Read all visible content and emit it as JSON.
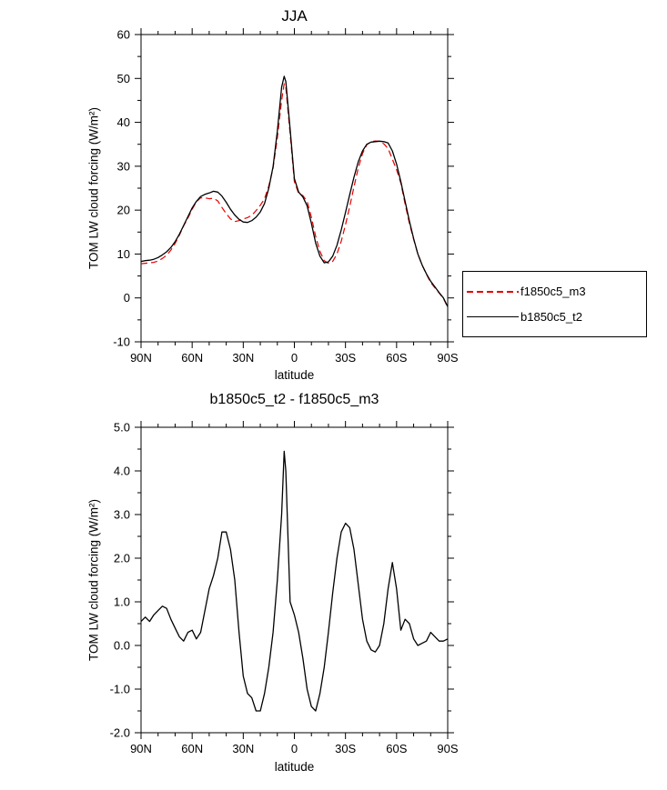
{
  "figure": {
    "background": "#ffffff"
  },
  "chart_data": [
    {
      "id": "top",
      "type": "line",
      "title": "JJA",
      "xlabel": "latitude",
      "ylabel": "TOM LW cloud forcing (W/m²)",
      "xlim": [
        90,
        -90
      ],
      "ylim": [
        -10,
        60
      ],
      "grid": false,
      "x_ticks": {
        "values": [
          90,
          60,
          30,
          0,
          -30,
          -60,
          -90
        ],
        "labels": [
          "90N",
          "60N",
          "30N",
          "0",
          "30S",
          "60S",
          "90S"
        ],
        "minor_step": 10
      },
      "y_ticks": {
        "values": [
          -10,
          0,
          10,
          20,
          30,
          40,
          50,
          60
        ],
        "labels": [
          "-10",
          "0",
          "10",
          "20",
          "30",
          "40",
          "50",
          "60"
        ],
        "minor_step": 5
      },
      "legend": {
        "position": "outside-right"
      },
      "x": [
        90,
        87.5,
        85,
        82.5,
        80,
        77.5,
        75,
        72.5,
        70,
        67.5,
        65,
        62.5,
        60,
        57.5,
        55,
        52.5,
        50,
        47.5,
        45,
        42.5,
        40,
        37.5,
        35,
        32.5,
        30,
        27.5,
        25,
        22.5,
        20,
        17.5,
        15,
        12.5,
        10,
        7.5,
        6,
        5,
        2.5,
        0,
        -2.5,
        -5,
        -7.5,
        -10,
        -12.5,
        -15,
        -17.5,
        -20,
        -22.5,
        -25,
        -27.5,
        -30,
        -32.5,
        -35,
        -37.5,
        -40,
        -42.5,
        -45,
        -47.5,
        -50,
        -52.5,
        -55,
        -57.5,
        -60,
        -62.5,
        -65,
        -67.5,
        -70,
        -72.5,
        -75,
        -77.5,
        -80,
        -82.5,
        -85,
        -87.5,
        -90
      ],
      "series": [
        {
          "name": "f1850c5_m3",
          "color": "#e60000",
          "style": "dashed",
          "values": [
            7.8,
            7.9,
            8.0,
            8.1,
            8.4,
            9.0,
            9.7,
            10.9,
            12.4,
            14.3,
            16.4,
            18.2,
            20.2,
            21.9,
            22.8,
            22.8,
            22.6,
            22.7,
            22.1,
            20.6,
            19.2,
            18.0,
            17.4,
            17.6,
            18.0,
            18.3,
            18.8,
            19.9,
            21.1,
            22.6,
            25.5,
            29.6,
            36.5,
            45.0,
            48.8,
            48.0,
            37.5,
            26.5,
            23.8,
            23.3,
            22.0,
            18.4,
            14.0,
            10.6,
            8.5,
            7.9,
            8.3,
            10.0,
            12.9,
            16.7,
            20.8,
            25.3,
            29.6,
            32.9,
            34.9,
            35.6,
            35.75,
            35.7,
            35.1,
            34.0,
            31.6,
            29.2,
            26.15,
            21.4,
            17.0,
            13.35,
            10.0,
            7.45,
            5.4,
            3.5,
            2.3,
            1.1,
            -0.1,
            -2.15
          ]
        },
        {
          "name": "b1850c5_t2",
          "color": "#000000",
          "style": "solid",
          "values": [
            8.3,
            8.5,
            8.6,
            8.8,
            9.2,
            9.8,
            10.5,
            11.5,
            12.8,
            14.5,
            16.5,
            18.5,
            20.5,
            22.0,
            23.1,
            23.6,
            23.9,
            24.3,
            24.1,
            23.2,
            21.8,
            20.2,
            18.9,
            17.9,
            17.3,
            17.2,
            17.6,
            18.4,
            19.6,
            21.5,
            25.0,
            29.9,
            38.0,
            48.0,
            50.5,
            49.3,
            38.5,
            27.2,
            24.1,
            23.0,
            21.0,
            17.0,
            12.5,
            9.5,
            8.0,
            8.2,
            9.5,
            12.0,
            15.5,
            19.5,
            23.5,
            27.5,
            31.0,
            33.5,
            35.0,
            35.5,
            35.6,
            35.7,
            35.6,
            35.3,
            33.5,
            30.5,
            26.5,
            22.0,
            17.5,
            13.5,
            10.0,
            7.5,
            5.5,
            3.8,
            2.5,
            1.2,
            0.0,
            -2.0
          ]
        }
      ]
    },
    {
      "id": "bottom",
      "type": "line",
      "title": "b1850c5_t2 - f1850c5_m3",
      "xlabel": "latitude",
      "ylabel": "TOM LW cloud forcing (W/m²)",
      "xlim": [
        90,
        -90
      ],
      "ylim": [
        -2,
        5
      ],
      "grid": false,
      "x_ticks": {
        "values": [
          90,
          60,
          30,
          0,
          -30,
          -60,
          -90
        ],
        "labels": [
          "90N",
          "60N",
          "30N",
          "0",
          "30S",
          "60S",
          "90S"
        ],
        "minor_step": 10
      },
      "y_ticks": {
        "values": [
          -2,
          -1,
          0,
          1,
          2,
          3,
          4,
          5
        ],
        "labels": [
          "-2.0",
          "-1.0",
          "0.0",
          "1.0",
          "2.0",
          "3.0",
          "4.0",
          "5.0"
        ],
        "minor_step": 0.5
      },
      "x": [
        90,
        87.5,
        85,
        82.5,
        80,
        77.5,
        75,
        72.5,
        70,
        67.5,
        65,
        62.5,
        60,
        57.5,
        55,
        52.5,
        50,
        47.5,
        45,
        42.5,
        40,
        37.5,
        35,
        32.5,
        30,
        27.5,
        25,
        22.5,
        20,
        17.5,
        15,
        12.5,
        10,
        7.5,
        6,
        5,
        2.5,
        0,
        -2.5,
        -5,
        -7.5,
        -10,
        -12.5,
        -15,
        -17.5,
        -20,
        -22.5,
        -25,
        -27.5,
        -30,
        -32.5,
        -35,
        -37.5,
        -40,
        -42.5,
        -45,
        -47.5,
        -50,
        -52.5,
        -55,
        -57.5,
        -60,
        -62.5,
        -65,
        -67.5,
        -70,
        -72.5,
        -75,
        -77.5,
        -80,
        -82.5,
        -85,
        -87.5,
        -90
      ],
      "series": [
        {
          "name": "b1850c5_t2 - f1850c5_m3",
          "color": "#000000",
          "style": "solid",
          "values": [
            0.55,
            0.65,
            0.55,
            0.7,
            0.8,
            0.9,
            0.85,
            0.6,
            0.4,
            0.2,
            0.1,
            0.3,
            0.35,
            0.15,
            0.3,
            0.8,
            1.3,
            1.6,
            2.0,
            2.6,
            2.6,
            2.2,
            1.5,
            0.3,
            -0.7,
            -1.1,
            -1.2,
            -1.5,
            -1.5,
            -1.1,
            -0.5,
            0.3,
            1.5,
            3.0,
            4.45,
            4.0,
            1.0,
            0.7,
            0.3,
            -0.3,
            -1.0,
            -1.4,
            -1.5,
            -1.1,
            -0.5,
            0.3,
            1.2,
            2.0,
            2.6,
            2.8,
            2.7,
            2.2,
            1.4,
            0.6,
            0.1,
            -0.1,
            -0.15,
            0.0,
            0.5,
            1.3,
            1.9,
            1.3,
            0.35,
            0.6,
            0.5,
            0.15,
            0.0,
            0.05,
            0.1,
            0.3,
            0.2,
            0.1,
            0.1,
            0.15
          ]
        }
      ]
    }
  ]
}
